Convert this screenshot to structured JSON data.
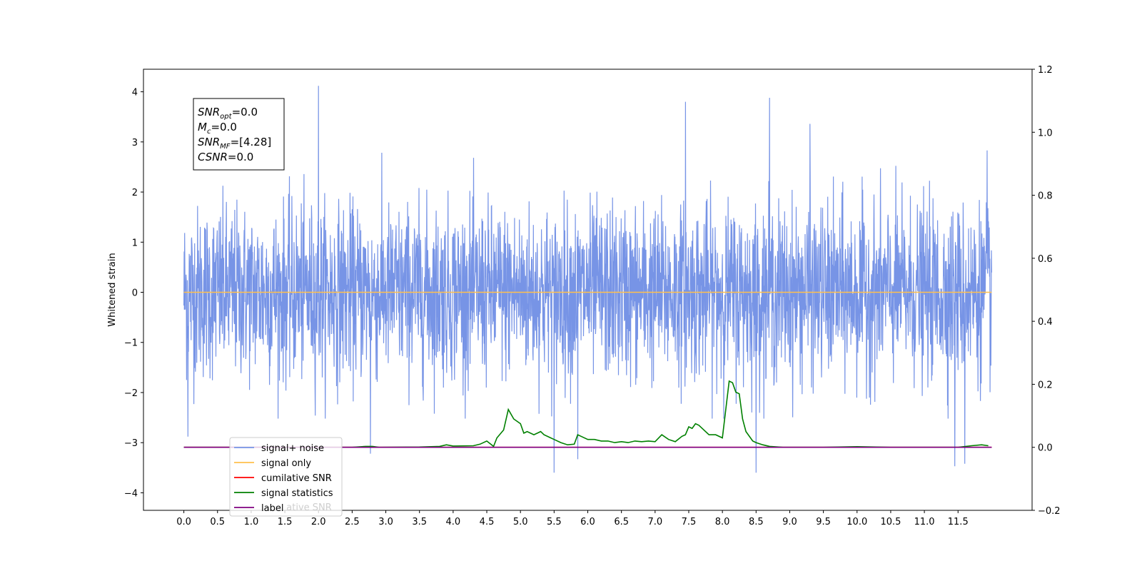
{
  "chart_data": {
    "type": "line",
    "xlabel": "",
    "ylabel": "Whitened strain",
    "xlim": [
      -0.6,
      12.6
    ],
    "ylim": [
      -4.35,
      4.45
    ],
    "y2lim": [
      -0.2,
      1.2
    ],
    "x_ticks": [
      "0.0",
      "0.5",
      "1.0",
      "1.5",
      "2.0",
      "2.5",
      "3.0",
      "3.5",
      "4.0",
      "4.5",
      "5.0",
      "5.5",
      "6.0",
      "6.5",
      "7.0",
      "7.5",
      "8.0",
      "8.5",
      "9.0",
      "9.5",
      "10.0",
      "10.5",
      "11.0",
      "11.5"
    ],
    "x_tick_values": [
      0,
      0.5,
      1,
      1.5,
      2,
      2.5,
      3,
      3.5,
      4,
      4.5,
      5,
      5.5,
      6,
      6.5,
      7,
      7.5,
      8,
      8.5,
      9,
      9.5,
      10,
      10.5,
      11,
      11.5
    ],
    "y_ticks": [
      "−4",
      "−3",
      "−2",
      "−1",
      "0",
      "1",
      "2",
      "3",
      "4"
    ],
    "y_tick_values": [
      -4,
      -3,
      -2,
      -1,
      0,
      1,
      2,
      3,
      4
    ],
    "y2_ticks": [
      "−0.2",
      "0.0",
      "0.2",
      "0.4",
      "0.6",
      "0.8",
      "1.0",
      "1.2"
    ],
    "y2_tick_values": [
      -0.2,
      0,
      0.2,
      0.4,
      0.6,
      0.8,
      1.0,
      1.2
    ],
    "grid": false,
    "legend_position": "lower-left",
    "series": [
      {
        "name": "signal+ noise",
        "axis": "left",
        "color": "#7794e6",
        "kind": "noise",
        "x_range": [
          0,
          12.0
        ],
        "noise_std": 0.85,
        "noise_envelope": [
          -3.6,
          4.12
        ],
        "spikes": [
          [
            0.06,
            -2.88
          ],
          [
            2.0,
            4.12
          ],
          [
            2.77,
            -3.22
          ],
          [
            5.5,
            -3.6
          ],
          [
            5.85,
            -3.33
          ],
          [
            7.45,
            3.8
          ],
          [
            8.5,
            -3.6
          ],
          [
            8.7,
            3.88
          ],
          [
            9.3,
            3.36
          ],
          [
            11.45,
            -3.47
          ],
          [
            11.6,
            -3.42
          ],
          [
            11.93,
            2.83
          ]
        ]
      },
      {
        "name": "signal only",
        "axis": "left",
        "color": "#ffc04d",
        "x": [
          0,
          12.0
        ],
        "values": [
          0,
          0
        ]
      },
      {
        "name": "cumilative SNR",
        "axis": "right",
        "color": "#ff0000",
        "x": [
          0,
          12.0
        ],
        "values": [
          0,
          0
        ]
      },
      {
        "name": "signal statistics",
        "axis": "right",
        "color": "#008000",
        "x": [
          0.0,
          2.5,
          2.7,
          2.8,
          2.9,
          3.5,
          3.8,
          3.9,
          4.0,
          4.3,
          4.4,
          4.5,
          4.6,
          4.65,
          4.75,
          4.82,
          4.9,
          5.0,
          5.05,
          5.1,
          5.2,
          5.25,
          5.3,
          5.35,
          5.45,
          5.5,
          5.6,
          5.7,
          5.8,
          5.85,
          5.9,
          6.0,
          6.1,
          6.2,
          6.3,
          6.4,
          6.5,
          6.6,
          6.7,
          6.8,
          6.9,
          7.0,
          7.1,
          7.2,
          7.3,
          7.4,
          7.45,
          7.5,
          7.55,
          7.6,
          7.65,
          7.7,
          7.8,
          7.9,
          8.0,
          8.1,
          8.15,
          8.2,
          8.25,
          8.3,
          8.35,
          8.45,
          8.5,
          8.6,
          8.7,
          8.9,
          9.5,
          10.0,
          10.5,
          11.0,
          11.5,
          11.7,
          11.85,
          11.95
        ],
        "values": [
          0.0,
          0.0,
          0.003,
          0.003,
          0.0,
          0.001,
          0.003,
          0.008,
          0.004,
          0.005,
          0.01,
          0.02,
          0.003,
          0.03,
          0.055,
          0.12,
          0.09,
          0.075,
          0.045,
          0.05,
          0.04,
          0.045,
          0.05,
          0.04,
          0.03,
          0.025,
          0.015,
          0.008,
          0.01,
          0.04,
          0.035,
          0.025,
          0.025,
          0.02,
          0.02,
          0.015,
          0.018,
          0.015,
          0.02,
          0.018,
          0.02,
          0.018,
          0.04,
          0.025,
          0.018,
          0.035,
          0.04,
          0.065,
          0.06,
          0.075,
          0.07,
          0.06,
          0.04,
          0.04,
          0.03,
          0.21,
          0.205,
          0.175,
          0.17,
          0.09,
          0.05,
          0.02,
          0.015,
          0.008,
          0.003,
          0.0,
          0.0,
          0.002,
          0.0,
          0.0,
          0.0,
          0.005,
          0.008,
          0.005
        ]
      },
      {
        "name": "label",
        "axis": "right",
        "color": "#800080",
        "x": [
          0,
          12.0
        ],
        "values": [
          0,
          0
        ]
      }
    ],
    "legend_hidden_text": "cumilative SNR",
    "info_box": {
      "lines": [
        {
          "main": "SNR",
          "sub": "opt",
          "value": "=0.0"
        },
        {
          "main": "M",
          "sub": "c",
          "value": "=0.0"
        },
        {
          "main": "SNR",
          "sub": "MF",
          "value": "=[4.28]"
        },
        {
          "main": "CSNR",
          "sub": "",
          "value": "=0.0"
        }
      ]
    }
  }
}
